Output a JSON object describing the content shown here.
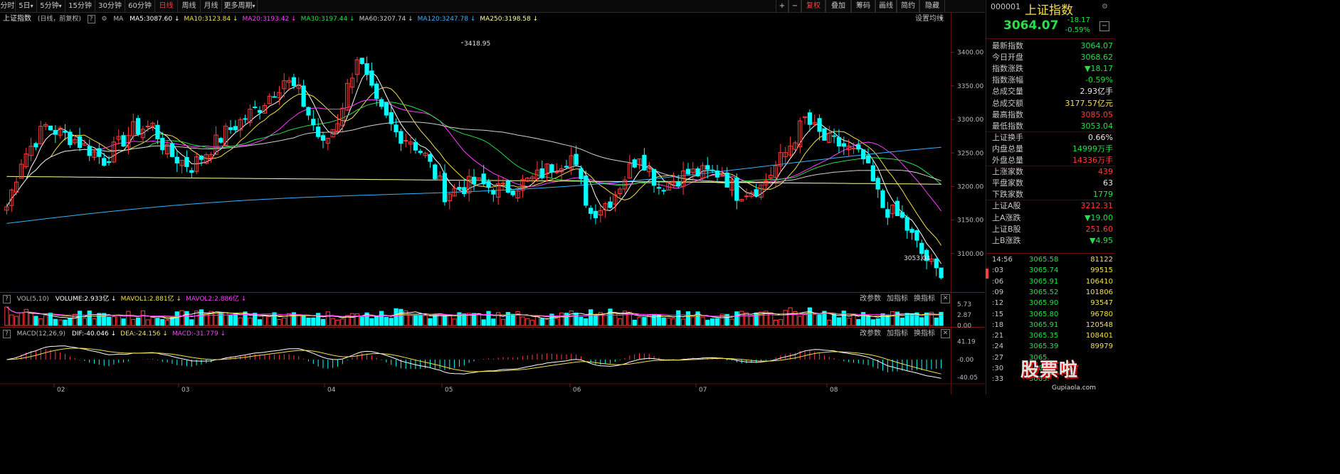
{
  "toolbar": {
    "tabs": [
      "分时",
      "5日",
      "5分钟",
      "15分钟",
      "30分钟",
      "60分钟",
      "日线",
      "周线",
      "月线",
      "更多周期"
    ],
    "active": "日线",
    "right_buttons": [
      "+",
      "−",
      "复权",
      "叠加",
      "筹码",
      "画线",
      "简约",
      "隐藏"
    ],
    "f_marks": [
      "▾",
      "▾",
      "▾"
    ]
  },
  "main_header": {
    "title": "上证指数",
    "subtitle": "(日线，前复权)",
    "indicator": "MA",
    "ma": [
      {
        "label": "MA5:3087.60",
        "color": "#ffffff"
      },
      {
        "label": "MA10:3123.84",
        "color": "#f5e04a"
      },
      {
        "label": "MA20:3193.42",
        "color": "#ff3dff"
      },
      {
        "label": "MA30:3197.44",
        "color": "#26e04a"
      },
      {
        "label": "MA60:3207.74",
        "color": "#d0d0d0"
      },
      {
        "label": "MA120:3247.78",
        "color": "#35b3ff"
      },
      {
        "label": "MA250:3198.58",
        "color": "#ffffa0"
      }
    ],
    "settings": "设置均线"
  },
  "vol_header": {
    "title": "VOL(5,10)",
    "items": [
      {
        "label": "VOLUME:2.933亿",
        "color": "#ffffff"
      },
      {
        "label": "MAVOL1:2.881亿",
        "color": "#f5e04a"
      },
      {
        "label": "MAVOL2:2.886亿",
        "color": "#ff3dff"
      }
    ],
    "links": [
      "改参数",
      "加指标",
      "换指标"
    ]
  },
  "macd_header": {
    "title": "MACD(12,26,9)",
    "items": [
      {
        "label": "DIF:-40.046",
        "color": "#ffffff"
      },
      {
        "label": "DEA:-24.156",
        "color": "#f5e04a"
      },
      {
        "label": "MACD:-31.779",
        "color": "#ff3dff"
      }
    ],
    "links": [
      "改参数",
      "加指标",
      "换指标"
    ]
  },
  "annotations": {
    "high": "3418.95",
    "low": "3053.04"
  },
  "price_axis": [
    "3400.00",
    "3350.00",
    "3300.00",
    "3250.00",
    "3200.00",
    "3150.00",
    "3100.00"
  ],
  "vol_axis": [
    "5.73",
    "2.87",
    "0.00"
  ],
  "macd_axis": [
    "41.19",
    "-0.00",
    "-40.05"
  ],
  "x_axis": [
    "02",
    "03",
    "04",
    "05",
    "06",
    "07",
    "08"
  ],
  "panel": {
    "code": "000001",
    "name": "上证指数",
    "price": "3064.07",
    "change": "-18.17",
    "pct": "-0.59%",
    "stats": [
      {
        "k": "最新指数",
        "v": "3064.07",
        "c": "grn"
      },
      {
        "k": "今日开盘",
        "v": "3068.62",
        "c": "grn"
      },
      {
        "k": "指数涨跌",
        "v": "▼18.17",
        "c": "grn"
      },
      {
        "k": "指数涨幅",
        "v": "-0.59%",
        "c": "grn"
      },
      {
        "k": "总成交量",
        "v": "2.93亿手",
        "c": "wht"
      },
      {
        "k": "总成交额",
        "v": "3177.57亿元",
        "c": "yel"
      },
      {
        "k": "最高指数",
        "v": "3085.05",
        "c": "red"
      },
      {
        "k": "最低指数",
        "v": "3053.04",
        "c": "grn"
      },
      {
        "k": "上证换手",
        "v": "0.66%",
        "c": "wht"
      },
      {
        "k": "内盘总量",
        "v": "14999万手",
        "c": "grn"
      },
      {
        "k": "外盘总量",
        "v": "14336万手",
        "c": "red"
      },
      {
        "k": "上涨家数",
        "v": "439",
        "c": "red"
      },
      {
        "k": "平盘家数",
        "v": "63",
        "c": "wht"
      },
      {
        "k": "下跌家数",
        "v": "1779",
        "c": "grn"
      },
      {
        "k": "上证A股",
        "v": "3212.31",
        "c": "red"
      },
      {
        "k": "上A涨跌",
        "v": "▼19.00",
        "c": "grn"
      },
      {
        "k": "上证B股",
        "v": "251.60",
        "c": "red"
      },
      {
        "k": "上B涨跌",
        "v": "▼4.95",
        "c": "grn"
      }
    ],
    "ticks": [
      {
        "t": "14:56",
        "p": "3065.58",
        "q": "81122"
      },
      {
        "t": ":03",
        "p": "3065.74",
        "q": "99515"
      },
      {
        "t": ":06",
        "p": "3065.91",
        "q": "106410"
      },
      {
        "t": ":09",
        "p": "3065.52",
        "q": "101806"
      },
      {
        "t": ":12",
        "p": "3065.90",
        "q": "93547"
      },
      {
        "t": ":15",
        "p": "3065.80",
        "q": "96780"
      },
      {
        "t": ":18",
        "p": "3065.91",
        "q": "120548"
      },
      {
        "t": ":21",
        "p": "3065.35",
        "q": "108401"
      },
      {
        "t": ":24",
        "p": "3065.39",
        "q": "89979"
      },
      {
        "t": ":27",
        "p": "3065.",
        "q": ""
      },
      {
        "t": ":30",
        "p": "3065.",
        "q": ""
      },
      {
        "t": ":33",
        "p": "3065.",
        "q": ""
      }
    ],
    "watermark": "股票啦",
    "watermark_url": "Gupiaola.com"
  },
  "chart_data": {
    "type": "candlestick",
    "ylim": [
      3050,
      3440
    ],
    "vol_ylim": [
      0,
      5.73
    ],
    "macd_ylim": [
      -45,
      45
    ],
    "seed_open": 3170,
    "targets": [
      [
        0,
        3170
      ],
      [
        3,
        3240
      ],
      [
        8,
        3290
      ],
      [
        14,
        3270
      ],
      [
        20,
        3240
      ],
      [
        26,
        3285
      ],
      [
        30,
        3290
      ],
      [
        33,
        3250
      ],
      [
        38,
        3230
      ],
      [
        45,
        3280
      ],
      [
        52,
        3320
      ],
      [
        57,
        3360
      ],
      [
        60,
        3340
      ],
      [
        65,
        3260
      ],
      [
        68,
        3300
      ],
      [
        72,
        3395
      ],
      [
        76,
        3320
      ],
      [
        80,
        3280
      ],
      [
        83,
        3270
      ],
      [
        86,
        3245
      ],
      [
        90,
        3190
      ],
      [
        96,
        3205
      ],
      [
        102,
        3195
      ],
      [
        108,
        3210
      ],
      [
        112,
        3230
      ],
      [
        116,
        3245
      ],
      [
        120,
        3160
      ],
      [
        124,
        3180
      ],
      [
        130,
        3250
      ],
      [
        134,
        3200
      ],
      [
        140,
        3220
      ],
      [
        147,
        3220
      ],
      [
        150,
        3190
      ],
      [
        155,
        3200
      ],
      [
        160,
        3250
      ],
      [
        164,
        3300
      ],
      [
        168,
        3270
      ],
      [
        172,
        3260
      ],
      [
        176,
        3240
      ],
      [
        180,
        3170
      ],
      [
        184,
        3150
      ],
      [
        188,
        3100
      ],
      [
        192,
        3064
      ]
    ]
  }
}
